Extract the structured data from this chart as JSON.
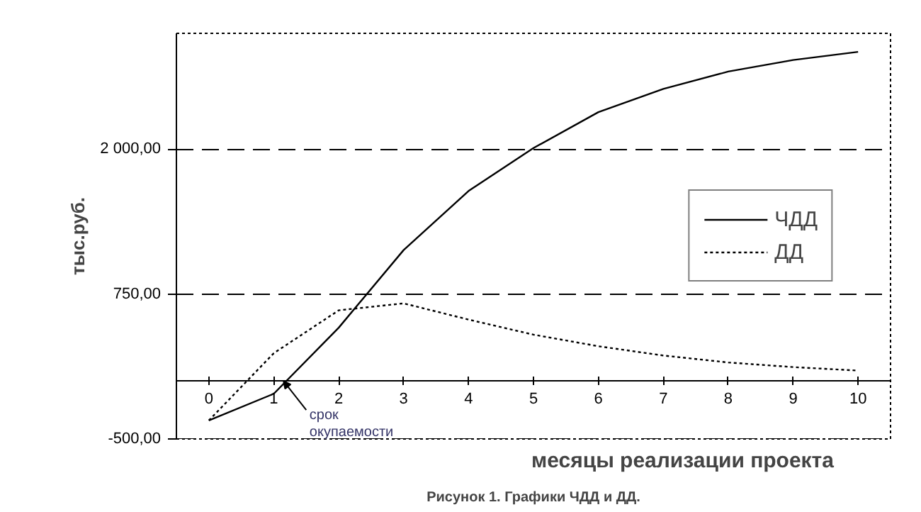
{
  "chart_data": {
    "type": "line",
    "xlabel": "месяцы реализации проекта",
    "ylabel": "тыс.руб.",
    "x": [
      0,
      1,
      2,
      3,
      4,
      5,
      6,
      7,
      8,
      9,
      10
    ],
    "series": [
      {
        "name": "ЧДД",
        "color": "#000000",
        "line_style": "solid",
        "values": [
          -340,
          -110,
          460,
          1130,
          1640,
          2010,
          2320,
          2520,
          2670,
          2770,
          2840
        ]
      },
      {
        "name": "ДД",
        "color": "#000000",
        "line_style": "dotted",
        "values": [
          -340,
          240,
          610,
          670,
          530,
          400,
          300,
          220,
          160,
          120,
          90
        ]
      }
    ],
    "xlim": [
      -0.5,
      10.5
    ],
    "xticks": [
      0,
      1,
      2,
      3,
      4,
      5,
      6,
      7,
      8,
      9,
      10
    ],
    "ylim": [
      -500,
      3000
    ],
    "yticks": [
      {
        "value": -500,
        "label": "-500,00"
      },
      {
        "value": 750,
        "label": "750,00"
      },
      {
        "value": 2000,
        "label": "2 000,00"
      }
    ],
    "grid": "y",
    "legend": "right",
    "marker": "none",
    "annotations": [
      {
        "text": "срок окупаемости",
        "x": 1.15,
        "y": 0
      },
      "Рисунок 1. Графики ЧДД и ДД."
    ]
  }
}
